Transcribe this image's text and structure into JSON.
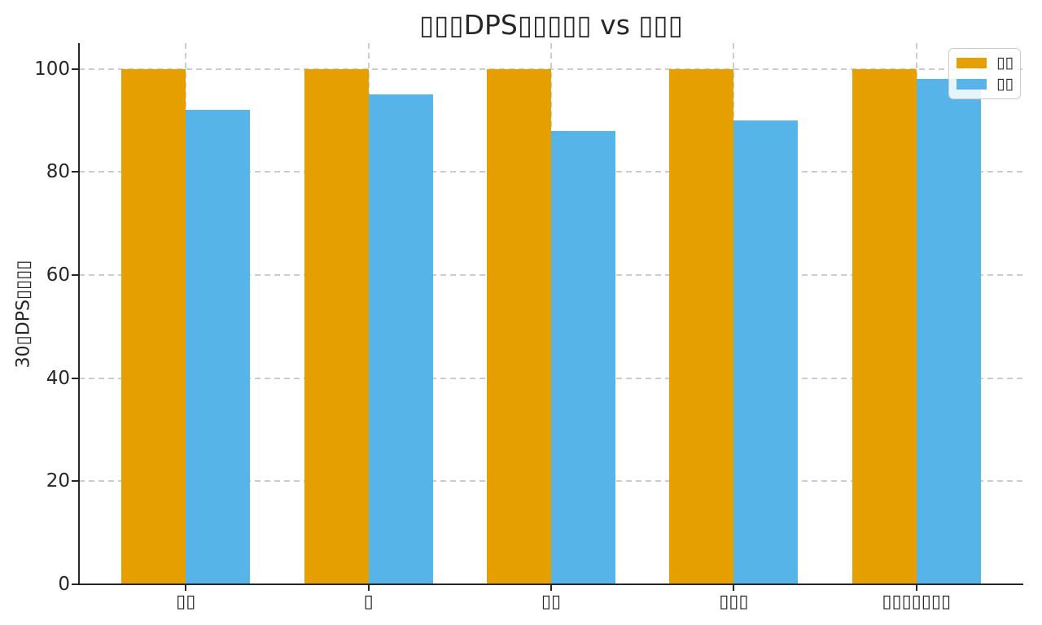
{
  "figure": {
    "background": "#ffffff",
    "text_color": "#262626",
    "spine_color": "#262626",
    "grid_color": "#cccccc"
  },
  "chart_data": {
    "type": "bar",
    "title": "▯▯▯DPS▯▯▯▯▯ vs ▯▯▯",
    "xlabel": "",
    "ylabel": "30▯DPS▯▯▯▯",
    "categories": [
      "▯▯",
      "▯",
      "▯▯",
      "▯▯▯",
      "▯▯▯▯▯▯▯"
    ],
    "series": [
      {
        "name": "▯▯",
        "color": "#E69F00",
        "values": [
          100,
          100,
          100,
          100,
          100
        ]
      },
      {
        "name": "▯▯",
        "color": "#56B4E9",
        "values": [
          92,
          95,
          88,
          90,
          98
        ]
      }
    ],
    "yticks": [
      0,
      20,
      40,
      60,
      80,
      100
    ],
    "ylim": [
      0,
      105
    ],
    "grid": true,
    "grid_style": "dashed",
    "legend_position": "upper right",
    "bar_width": 0.35
  }
}
